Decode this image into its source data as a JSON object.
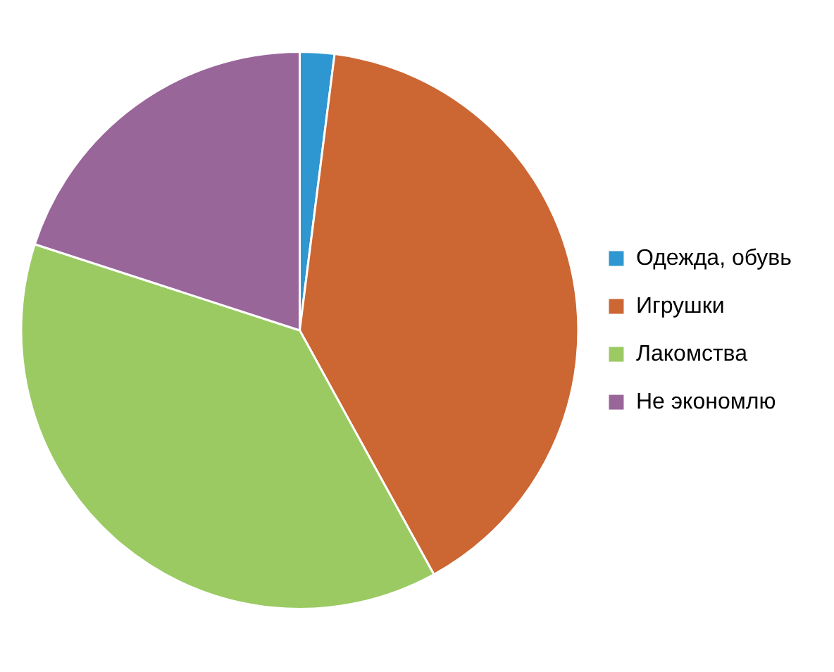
{
  "chart_data": {
    "type": "pie",
    "categories": [
      "Одежда, обувь",
      "Игрушки",
      "Лакомства",
      "Не экономлю"
    ],
    "values": [
      2,
      40,
      38,
      20
    ],
    "colors": [
      "#2e96d0",
      "#cc6633",
      "#9bca63",
      "#996699"
    ],
    "legend": "right"
  }
}
